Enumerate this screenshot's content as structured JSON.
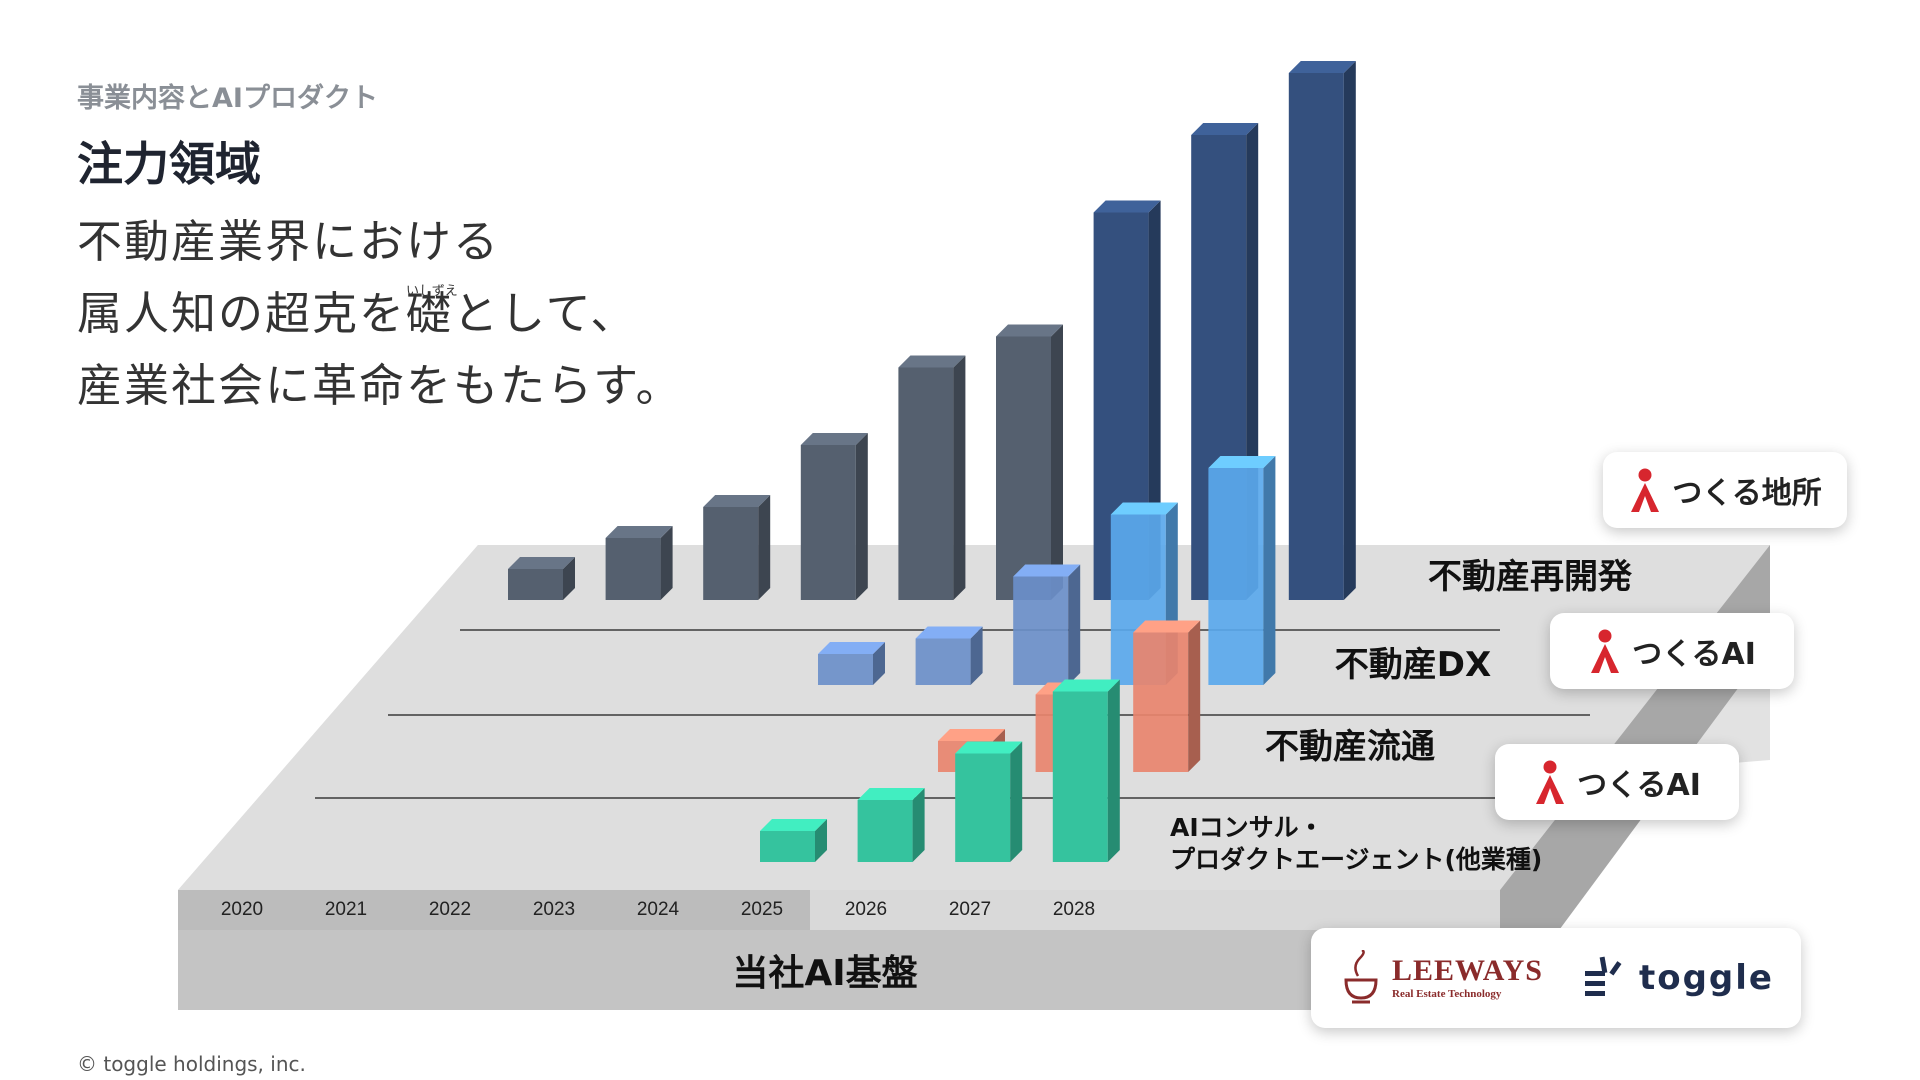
{
  "header": {
    "section_label": "事業内容とAIプロダクト",
    "title": "注力領域"
  },
  "tagline": {
    "line1": "不動産業界における",
    "line2_before": "属人知の超克を",
    "line2_kanji": "礎",
    "line2_ruby": "いしずえ",
    "line2_after": "として、",
    "line3": "産業社会に革命をもたらす。"
  },
  "chart_data": {
    "type": "bar",
    "title": "",
    "x_axis_years": [
      "2020",
      "2021",
      "2022",
      "2023",
      "2024",
      "2025",
      "2026",
      "2027",
      "2028"
    ],
    "ylabel": "",
    "platform_label": "当社AI基盤",
    "series": [
      {
        "name": "不動産再開発",
        "color": "#55606f",
        "color_future": "#34507e",
        "x": [
          "2020",
          "2021",
          "2022",
          "2023",
          "2024",
          "2025",
          "2026",
          "2027",
          "2028"
        ],
        "values": [
          2,
          4,
          6,
          10,
          15,
          17,
          25,
          30,
          34
        ]
      },
      {
        "name": "不動産DX",
        "color": "#6b8fc9",
        "color_future": "#5aa8ec",
        "x": [
          "2023",
          "2024",
          "2025",
          "2026",
          "2027"
        ],
        "values": [
          2,
          3,
          7,
          11,
          14
        ]
      },
      {
        "name": "不動産流通",
        "color": "#e8846e",
        "x": [
          "2025",
          "2026",
          "2027"
        ],
        "values": [
          2,
          5,
          9
        ]
      },
      {
        "name": "AIコンサル・\nプロダクトエージェント(他業種)",
        "color": "#35c39e",
        "x": [
          "2022",
          "2023",
          "2024",
          "2025"
        ],
        "values": [
          2,
          4,
          7,
          11
        ]
      }
    ]
  },
  "callouts": {
    "redevelopment": "つくる地所",
    "dx": "つくるAI",
    "distribution": "つくるAI",
    "platform_logo_left": "LEEWAYS",
    "platform_logo_left_sub": "Real Estate Technology",
    "platform_logo_right": "toggle"
  },
  "footer": {
    "copyright": "© toggle holdings, inc."
  }
}
